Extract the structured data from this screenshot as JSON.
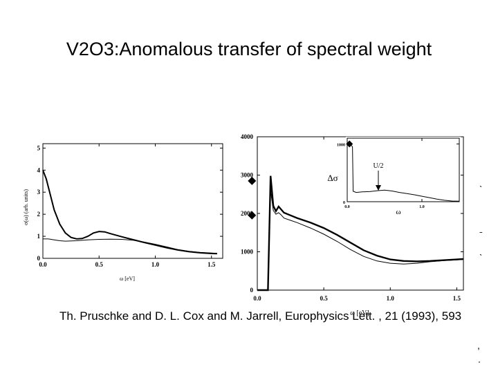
{
  "title": "V2O3:Anomalous transfer of spectral weight",
  "citation": "Th. Pruschke and D. L. Cox and M. Jarrell, Europhysics Lett. , 21 (1993), 593",
  "side_marks": [
    "ˎ",
    "ˍ",
    "ˎ",
    ",",
    "."
  ],
  "chart_data": [
    {
      "type": "line",
      "xlabel": "ω [eV]",
      "ylabel": "σ(ω) (arb. units)",
      "xlim": [
        0,
        1.6
      ],
      "ylim": [
        0,
        5.2
      ],
      "x_ticks": [
        "0.0",
        "0.5",
        "1.0",
        "1.5"
      ],
      "y_ticks": [
        "0",
        "1",
        "2",
        "3",
        "4",
        "5"
      ],
      "series": [
        {
          "style": "thick",
          "x": [
            0,
            0.03,
            0.06,
            0.1,
            0.15,
            0.2,
            0.25,
            0.3,
            0.35,
            0.4,
            0.45,
            0.5,
            0.55,
            0.6,
            0.7,
            0.8,
            0.9,
            1.0,
            1.1,
            1.2,
            1.3,
            1.4,
            1.5,
            1.55
          ],
          "y": [
            4.0,
            3.6,
            3.0,
            2.2,
            1.55,
            1.15,
            0.95,
            0.88,
            0.9,
            1.0,
            1.15,
            1.22,
            1.2,
            1.12,
            0.98,
            0.85,
            0.72,
            0.6,
            0.48,
            0.38,
            0.3,
            0.25,
            0.22,
            0.21
          ]
        },
        {
          "style": "thin",
          "x": [
            0,
            0.05,
            0.1,
            0.15,
            0.2,
            0.3,
            0.4,
            0.5,
            0.6,
            0.7,
            0.8,
            0.9,
            1.0,
            1.1,
            1.2,
            1.3,
            1.4,
            1.5,
            1.55
          ],
          "y": [
            0.88,
            0.88,
            0.84,
            0.8,
            0.78,
            0.8,
            0.84,
            0.86,
            0.87,
            0.86,
            0.82,
            0.74,
            0.64,
            0.52,
            0.4,
            0.32,
            0.27,
            0.24,
            0.23
          ]
        }
      ]
    },
    {
      "type": "line",
      "xlabel": "ω [eV]",
      "xlim": [
        0,
        1.55
      ],
      "ylim": [
        0,
        4000
      ],
      "x_ticks": [
        "0.0",
        "0.5",
        "1.0",
        "1.5"
      ],
      "y_ticks": [
        "0",
        "1000",
        "2000",
        "3000",
        "4000"
      ],
      "markers": [
        {
          "x": -0.04,
          "y": 2850
        },
        {
          "x": -0.04,
          "y": 1950
        }
      ],
      "series": [
        {
          "style": "thick",
          "x": [
            0,
            0.04,
            0.08,
            0.1,
            0.12,
            0.14,
            0.16,
            0.18,
            0.2,
            0.25,
            0.3,
            0.4,
            0.5,
            0.6,
            0.7,
            0.8,
            0.9,
            1.0,
            1.1,
            1.2,
            1.3,
            1.4,
            1.5,
            1.55
          ],
          "y": [
            0,
            0,
            0,
            2980,
            2200,
            2060,
            2180,
            2100,
            2020,
            1950,
            1880,
            1760,
            1620,
            1440,
            1240,
            1040,
            900,
            800,
            760,
            750,
            760,
            780,
            800,
            810
          ]
        },
        {
          "style": "thin",
          "x": [
            0,
            0.04,
            0.08,
            0.1,
            0.12,
            0.14,
            0.16,
            0.18,
            0.2,
            0.25,
            0.3,
            0.4,
            0.5,
            0.6,
            0.7,
            0.8,
            0.9,
            1.0,
            1.1,
            1.2,
            1.3,
            1.4,
            1.5,
            1.55
          ],
          "y": [
            0,
            0,
            0,
            2600,
            2080,
            1980,
            2020,
            1960,
            1880,
            1820,
            1760,
            1620,
            1460,
            1270,
            1060,
            880,
            760,
            700,
            680,
            700,
            740,
            770,
            790,
            800
          ]
        }
      ],
      "inset": {
        "type": "line",
        "ylabel": "Δσ",
        "xlabel": "ω",
        "annotation": "U/2",
        "xlim": [
          0,
          1.5
        ],
        "ylim": [
          0,
          1100
        ],
        "x_ticks": [
          "0.0",
          "1.0"
        ],
        "y_ticks": [
          "0",
          "1000"
        ],
        "marker": {
          "x": 0.03,
          "y": 1000
        },
        "series": [
          {
            "x": [
              0.0,
              0.04,
              0.07,
              0.08,
              0.12,
              0.2,
              0.3,
              0.4,
              0.5,
              0.6,
              0.7,
              0.8,
              0.9,
              1.0,
              1.1,
              1.2,
              1.3,
              1.4,
              1.5
            ],
            "y": [
              1000,
              1000,
              950,
              180,
              160,
              170,
              175,
              190,
              200,
              185,
              160,
              140,
              120,
              95,
              70,
              45,
              25,
              12,
              8
            ]
          }
        ]
      }
    }
  ]
}
